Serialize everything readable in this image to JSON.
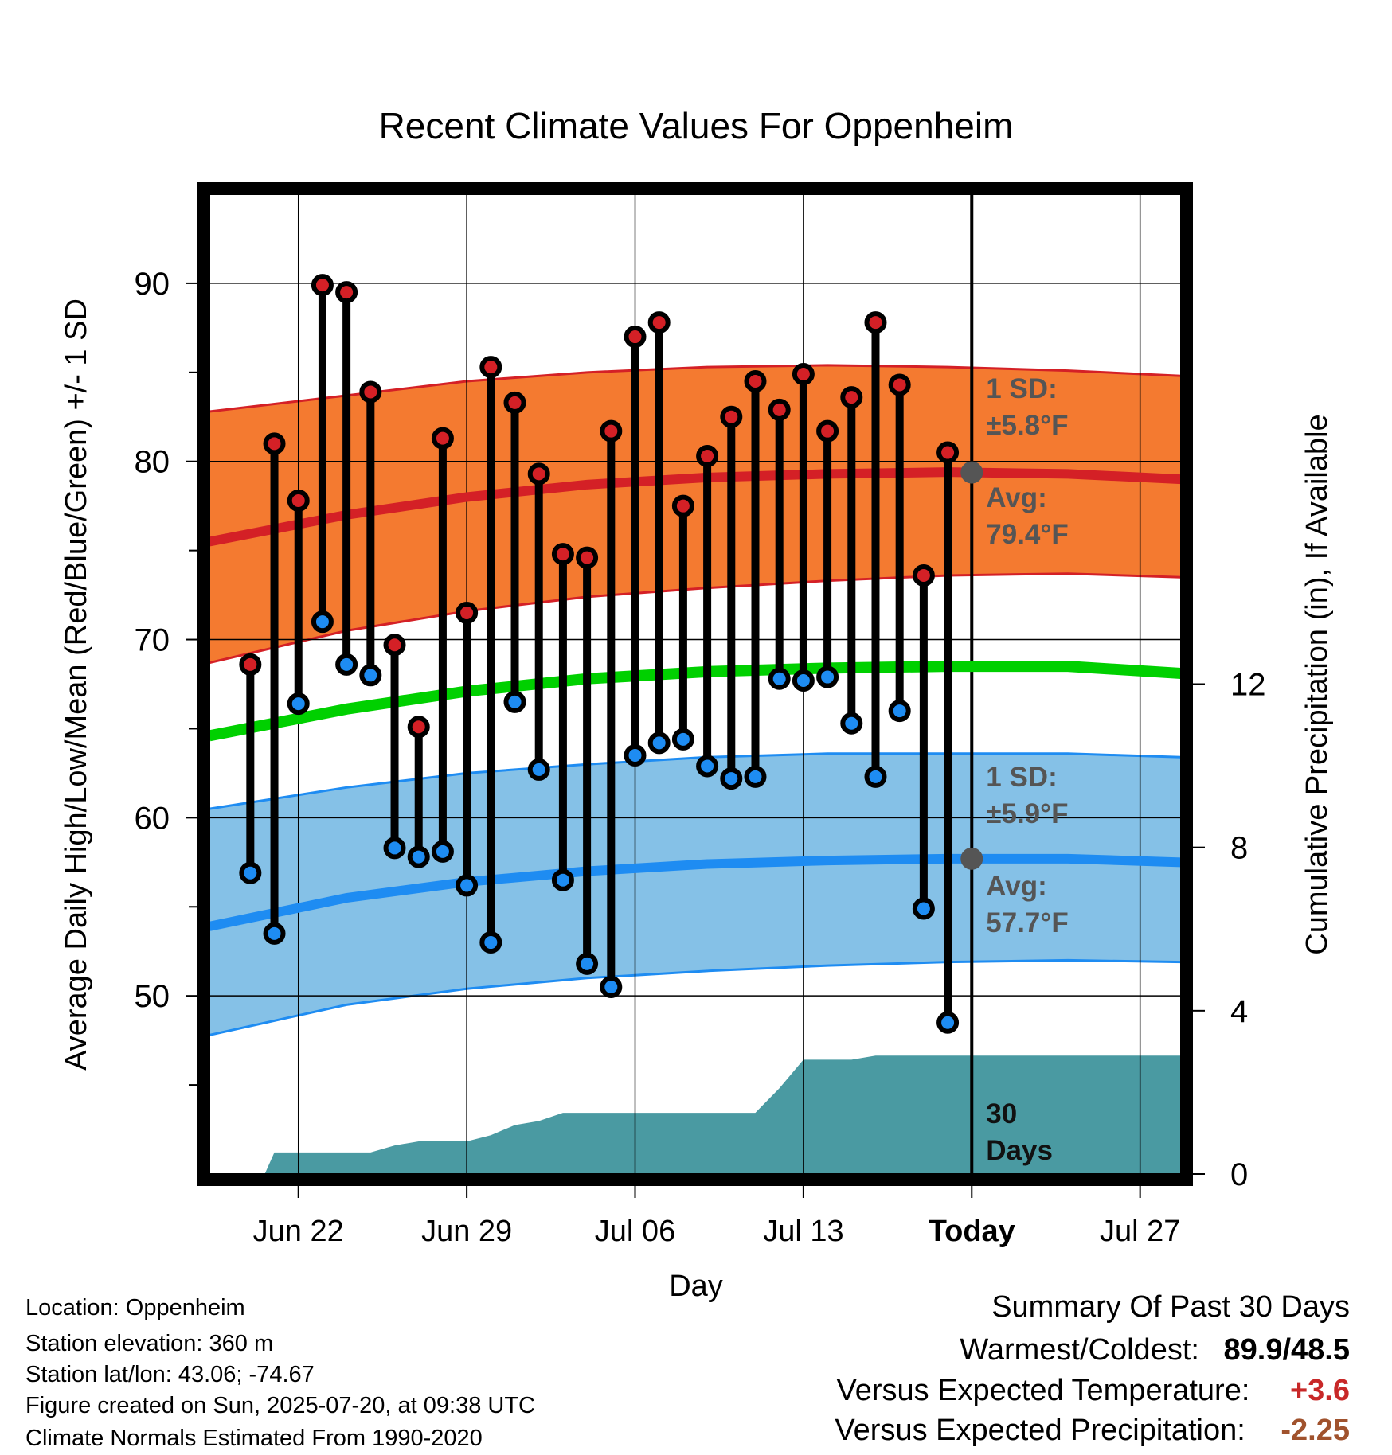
{
  "chart_data": {
    "type": "line",
    "title": "Recent Climate Values For Oppenheim",
    "xlabel": "Day",
    "ylabel": "Average Daily High/Low/Mean (Red/Blue/Green) +/- 1 SD",
    "y2label": "Cumulative Precipitation (in), If Available",
    "ylim": [
      40,
      95
    ],
    "y2lim": [
      0,
      24
    ],
    "y_ticks": [
      "50",
      "60",
      "70",
      "80",
      "90"
    ],
    "y2_ticks": [
      "0",
      "4",
      "8",
      "12"
    ],
    "x_ticks": [
      {
        "day": 3,
        "label": "Jun 22",
        "bold": false
      },
      {
        "day": 10,
        "label": "Jun 29",
        "bold": false
      },
      {
        "day": 17,
        "label": "Jul 06",
        "bold": false
      },
      {
        "day": 24,
        "label": "Jul 13",
        "bold": false
      },
      {
        "day": 31,
        "label": "Today",
        "bold": true
      },
      {
        "day": 38,
        "label": "Jul 27",
        "bold": false
      }
    ],
    "x_day_zero": "Jun 19",
    "xlim": [
      -0.7,
      39.7
    ],
    "today_day": 31,
    "grid": true,
    "daily_obs": [
      {
        "date": "Jun 20",
        "high": 68.6,
        "low": 56.9
      },
      {
        "date": "Jun 21",
        "high": 81.0,
        "low": 53.5
      },
      {
        "date": "Jun 22",
        "high": 77.8,
        "low": 66.4
      },
      {
        "date": "Jun 23",
        "high": 89.9,
        "low": 71.0
      },
      {
        "date": "Jun 24",
        "high": 89.5,
        "low": 68.6
      },
      {
        "date": "Jun 25",
        "high": 83.9,
        "low": 68.0
      },
      {
        "date": "Jun 26",
        "high": 69.7,
        "low": 58.3
      },
      {
        "date": "Jun 27",
        "high": 65.1,
        "low": 57.8
      },
      {
        "date": "Jun 28",
        "high": 81.3,
        "low": 58.1
      },
      {
        "date": "Jun 29",
        "high": 71.5,
        "low": 56.2
      },
      {
        "date": "Jun 30",
        "high": 85.3,
        "low": 53.0
      },
      {
        "date": "Jul 01",
        "high": 83.3,
        "low": 66.5
      },
      {
        "date": "Jul 02",
        "high": 79.3,
        "low": 62.7
      },
      {
        "date": "Jul 03",
        "high": 74.8,
        "low": 56.5
      },
      {
        "date": "Jul 04",
        "high": 74.6,
        "low": 51.8
      },
      {
        "date": "Jul 05",
        "high": 81.7,
        "low": 50.5
      },
      {
        "date": "Jul 06",
        "high": 87.0,
        "low": 63.5
      },
      {
        "date": "Jul 07",
        "high": 87.8,
        "low": 64.2
      },
      {
        "date": "Jul 08",
        "high": 77.5,
        "low": 64.4
      },
      {
        "date": "Jul 09",
        "high": 80.3,
        "low": 62.9
      },
      {
        "date": "Jul 10",
        "high": 82.5,
        "low": 62.2
      },
      {
        "date": "Jul 11",
        "high": 84.5,
        "low": 62.3
      },
      {
        "date": "Jul 12",
        "high": 82.9,
        "low": 67.8
      },
      {
        "date": "Jul 13",
        "high": 84.9,
        "low": 67.7
      },
      {
        "date": "Jul 14",
        "high": 81.7,
        "low": 67.9
      },
      {
        "date": "Jul 15",
        "high": 83.6,
        "low": 65.3
      },
      {
        "date": "Jul 16",
        "high": 87.8,
        "low": 62.3
      },
      {
        "date": "Jul 17",
        "high": 84.3,
        "low": 66.0
      },
      {
        "date": "Jul 18",
        "high": 73.6,
        "low": 54.9
      },
      {
        "date": "Jul 19",
        "high": 80.5,
        "low": 48.5
      }
    ],
    "normal_high": {
      "day": [
        -0.7,
        5,
        10,
        15,
        20,
        25,
        30,
        35,
        39.7
      ],
      "mean": [
        75.5,
        77.0,
        78.0,
        78.7,
        79.1,
        79.3,
        79.4,
        79.3,
        79.0
      ],
      "sd_upper": [
        82.8,
        83.7,
        84.5,
        85.0,
        85.3,
        85.4,
        85.3,
        85.1,
        84.8
      ],
      "sd_lower": [
        68.7,
        70.5,
        71.6,
        72.4,
        72.9,
        73.3,
        73.6,
        73.7,
        73.5
      ]
    },
    "normal_low": {
      "day": [
        -0.7,
        5,
        10,
        15,
        20,
        25,
        30,
        35,
        39.7
      ],
      "mean": [
        53.9,
        55.5,
        56.4,
        57.0,
        57.4,
        57.6,
        57.7,
        57.7,
        57.5
      ],
      "sd_upper": [
        60.5,
        61.7,
        62.5,
        63.0,
        63.4,
        63.6,
        63.6,
        63.6,
        63.4
      ],
      "sd_lower": [
        47.8,
        49.5,
        50.4,
        51.0,
        51.4,
        51.7,
        51.9,
        52.0,
        51.9
      ]
    },
    "normal_mean": {
      "day": [
        -0.7,
        5,
        10,
        15,
        20,
        25,
        30,
        35,
        39.7
      ],
      "mean": [
        64.6,
        66.1,
        67.1,
        67.8,
        68.2,
        68.4,
        68.5,
        68.5,
        68.1
      ]
    },
    "precip_cumulative": {
      "day": [
        1.6,
        2.0,
        6.0,
        7.0,
        8.0,
        9.0,
        10.0,
        11.0,
        12.0,
        13.0,
        14.0,
        16.0,
        18.0,
        20.0,
        21.0,
        22.0,
        23.0,
        24.0,
        26.0,
        27.0,
        28.0,
        39.7
      ],
      "value": [
        0.0,
        0.53,
        0.53,
        0.7,
        0.8,
        0.8,
        0.8,
        0.95,
        1.2,
        1.3,
        1.5,
        1.5,
        1.5,
        1.5,
        1.5,
        1.5,
        2.1,
        2.8,
        2.8,
        2.9,
        2.9,
        2.9
      ]
    },
    "annotations": {
      "high_sd": "1 SD:",
      "high_sd_value": "±5.8°F",
      "high_avg": "Avg:",
      "high_avg_value": "79.4°F",
      "low_sd": "1 SD:",
      "low_sd_value": "±5.9°F",
      "low_avg": "Avg:",
      "low_avg_value": "57.7°F",
      "days_line1": "30",
      "days_line2": "Days"
    },
    "colors": {
      "high_band": "#f47a30",
      "high_line": "#d42026",
      "low_band": "#85c1e7",
      "low_line": "#1e8cf2",
      "mean_line": "#00d000",
      "precip": "#4a9aa2",
      "high_dot": "#d42026",
      "low_dot": "#1e8cf2",
      "annotation_text": "#555555"
    }
  },
  "info": {
    "location": "Location: Oppenheim",
    "elevation": "Station elevation: 360 m",
    "latlon": "Station lat/lon: 43.06; -74.67",
    "created": "Figure created on Sun, 2025-07-20, at 09:38 UTC",
    "normals": "Climate Normals Estimated From 1990-2020"
  },
  "summary": {
    "heading": "Summary Of Past 30 Days",
    "warmest_label": "Warmest/Coldest:",
    "warmest_value": "89.9/48.5",
    "temp_label": "Versus Expected Temperature:",
    "temp_value": "+3.6",
    "temp_color": "#c82828",
    "precip_label": "Versus Expected Precipitation:",
    "precip_value": "-2.25",
    "precip_color": "#a0522d"
  }
}
